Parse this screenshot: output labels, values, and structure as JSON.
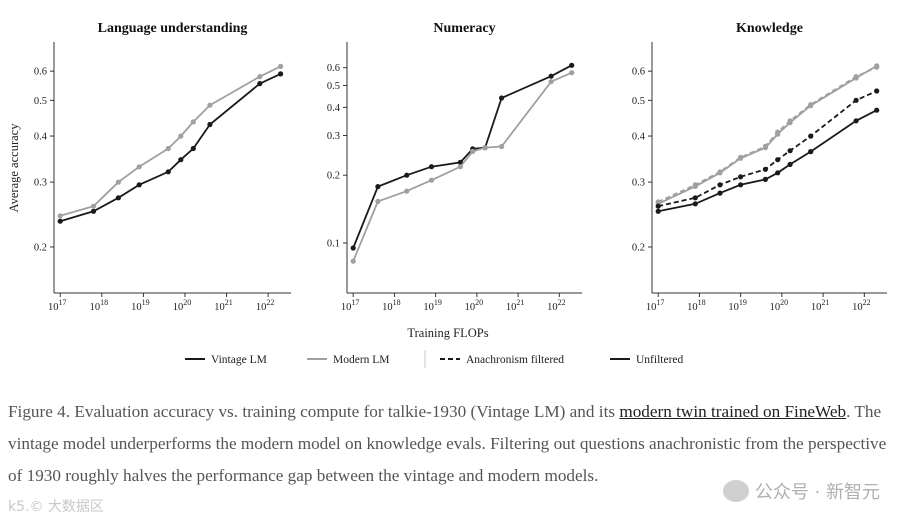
{
  "chart_data": {
    "type": "line",
    "y_scale": "log",
    "x_scale": "log",
    "shared_ylabel": "Average accuracy",
    "shared_xlabel": "Training FLOPs",
    "x_tick_exponents": [
      17,
      18,
      19,
      20,
      21,
      22
    ],
    "x_tick_base": "10",
    "panels": [
      {
        "title": "Language understanding",
        "yticks": [
          "0.2",
          "0.3",
          "0.4",
          "0.5",
          "0.6"
        ],
        "ytick_values": [
          0.2,
          0.3,
          0.4,
          0.5,
          0.6
        ],
        "ylim": [
          0.15,
          0.72
        ],
        "series": [
          {
            "name": "Vintage LM",
            "color": "#1a1a1a",
            "dash": false,
            "log10_flops": [
              17.0,
              17.8,
              18.4,
              18.9,
              19.6,
              19.9,
              20.2,
              20.6,
              21.8,
              22.3
            ],
            "values": [
              0.235,
              0.25,
              0.272,
              0.295,
              0.32,
              0.345,
              0.37,
              0.43,
              0.555,
              0.59
            ]
          },
          {
            "name": "Modern LM",
            "color": "#a0a0a0",
            "dash": false,
            "log10_flops": [
              17.0,
              17.8,
              18.4,
              18.9,
              19.6,
              19.9,
              20.2,
              20.6,
              21.8,
              22.3
            ],
            "values": [
              0.243,
              0.258,
              0.3,
              0.33,
              0.37,
              0.4,
              0.437,
              0.485,
              0.58,
              0.618
            ]
          }
        ]
      },
      {
        "title": "Numeracy",
        "yticks": [
          "0.1",
          "0.2",
          "0.3",
          "0.4",
          "0.5",
          "0.6"
        ],
        "ytick_values": [
          0.1,
          0.2,
          0.3,
          0.4,
          0.5,
          0.6
        ],
        "ylim": [
          0.06,
          0.78
        ],
        "series": [
          {
            "name": "Vintage LM",
            "color": "#1a1a1a",
            "dash": false,
            "log10_flops": [
              17.0,
              17.6,
              18.3,
              18.9,
              19.6,
              19.9,
              20.2,
              20.6,
              21.8,
              22.3
            ],
            "values": [
              0.095,
              0.178,
              0.2,
              0.218,
              0.228,
              0.262,
              0.265,
              0.44,
              0.55,
              0.615
            ]
          },
          {
            "name": "Modern LM",
            "color": "#a0a0a0",
            "dash": false,
            "log10_flops": [
              17.0,
              17.6,
              18.3,
              18.9,
              19.6,
              19.9,
              20.2,
              20.6,
              21.8,
              22.3
            ],
            "values": [
              0.083,
              0.153,
              0.17,
              0.19,
              0.218,
              0.255,
              0.265,
              0.268,
              0.52,
              0.57
            ]
          }
        ]
      },
      {
        "title": "Knowledge",
        "yticks": [
          "0.2",
          "0.3",
          "0.4",
          "0.5",
          "0.6"
        ],
        "ytick_values": [
          0.2,
          0.3,
          0.4,
          0.5,
          0.6
        ],
        "ylim": [
          0.15,
          0.72
        ],
        "series": [
          {
            "name": "Modern LM (anachronism filtered)",
            "color": "#a0a0a0",
            "dash": true,
            "log10_flops": [
              17.0,
              17.9,
              18.5,
              19.0,
              19.6,
              19.9,
              20.2,
              20.7,
              21.8,
              22.3
            ],
            "values": [
              0.265,
              0.295,
              0.32,
              0.35,
              0.375,
              0.41,
              0.44,
              0.487,
              0.58,
              0.615
            ]
          },
          {
            "name": "Modern LM (unfiltered)",
            "color": "#a0a0a0",
            "dash": false,
            "log10_flops": [
              17.0,
              17.9,
              18.5,
              19.0,
              19.6,
              19.9,
              20.2,
              20.7,
              21.8,
              22.3
            ],
            "values": [
              0.262,
              0.292,
              0.318,
              0.348,
              0.372,
              0.405,
              0.435,
              0.484,
              0.575,
              0.62
            ]
          },
          {
            "name": "Vintage LM (anachronism filtered)",
            "color": "#1a1a1a",
            "dash": true,
            "log10_flops": [
              17.0,
              17.9,
              18.5,
              19.0,
              19.6,
              19.9,
              20.2,
              20.7,
              21.8,
              22.3
            ],
            "values": [
              0.258,
              0.272,
              0.295,
              0.31,
              0.325,
              0.345,
              0.365,
              0.4,
              0.5,
              0.53
            ]
          },
          {
            "name": "Vintage LM (unfiltered)",
            "color": "#1a1a1a",
            "dash": false,
            "log10_flops": [
              17.0,
              17.9,
              18.5,
              19.0,
              19.6,
              19.9,
              20.2,
              20.7,
              21.8,
              22.3
            ],
            "values": [
              0.25,
              0.262,
              0.28,
              0.295,
              0.305,
              0.318,
              0.335,
              0.363,
              0.44,
              0.47
            ]
          }
        ]
      }
    ],
    "legend": [
      {
        "label": "Vintage LM",
        "color": "#1a1a1a",
        "dash": false
      },
      {
        "label": "Modern LM",
        "color": "#a0a0a0",
        "dash": false
      },
      {
        "label": "Anachronism filtered",
        "color": "#1a1a1a",
        "dash": true
      },
      {
        "label": "Unfiltered",
        "color": "#1a1a1a",
        "dash": false
      }
    ]
  },
  "caption": {
    "prefix": "Figure 4. Evaluation accuracy vs. training compute for talkie-1930 (Vintage LM) and its ",
    "link": "modern twin trained on FineWeb",
    "suffix": ". The vintage model underperforms the modern model on knowledge evals. Filtering out questions anachronistic from the perspective of 1930 roughly halves the performance gap between the vintage and modern models."
  },
  "watermarks": {
    "left": "k5.© 大数据区",
    "right": "公众号 · 新智元"
  }
}
